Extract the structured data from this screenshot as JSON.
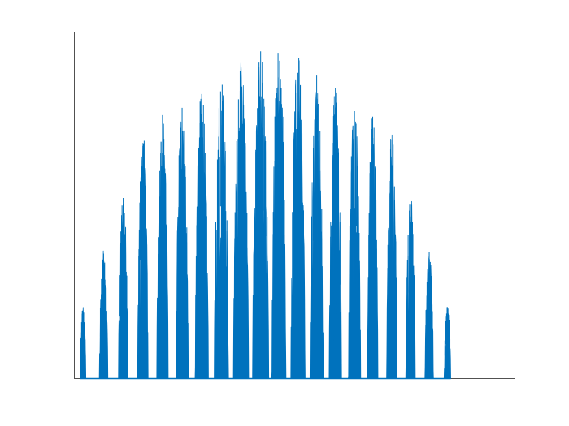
{
  "chart_data": {
    "type": "area",
    "title": "",
    "xlabel": "",
    "ylabel": "",
    "xlim": [
      0,
      23
    ],
    "ylim": [
      0,
      1
    ],
    "grid": false,
    "legend": "none",
    "color": "#0072BD",
    "series": [
      {
        "lobes": [
          {
            "start": 0.3,
            "end": 0.6,
            "peak": 0.21
          },
          {
            "start": 1.3,
            "end": 1.75,
            "peak": 0.37
          },
          {
            "start": 2.3,
            "end": 2.8,
            "peak": 0.54
          },
          {
            "start": 3.3,
            "end": 3.85,
            "peak": 0.72
          },
          {
            "start": 4.3,
            "end": 4.9,
            "peak": 0.77
          },
          {
            "start": 5.3,
            "end": 5.95,
            "peak": 0.8
          },
          {
            "start": 6.3,
            "end": 7.0,
            "peak": 0.84
          },
          {
            "start": 7.3,
            "end": 8.05,
            "peak": 0.88
          },
          {
            "start": 8.3,
            "end": 9.1,
            "peak": 0.92
          },
          {
            "start": 9.3,
            "end": 10.15,
            "peak": 0.95
          },
          {
            "start": 10.3,
            "end": 11.05,
            "peak": 0.99
          },
          {
            "start": 11.3,
            "end": 12.05,
            "peak": 0.94
          },
          {
            "start": 12.3,
            "end": 13.0,
            "peak": 0.88
          },
          {
            "start": 13.3,
            "end": 13.95,
            "peak": 0.84
          },
          {
            "start": 14.3,
            "end": 14.95,
            "peak": 0.8
          },
          {
            "start": 15.3,
            "end": 15.85,
            "peak": 0.77
          },
          {
            "start": 16.3,
            "end": 16.85,
            "peak": 0.72
          },
          {
            "start": 17.3,
            "end": 17.8,
            "peak": 0.54
          },
          {
            "start": 18.3,
            "end": 18.75,
            "peak": 0.37
          },
          {
            "start": 19.3,
            "end": 19.65,
            "peak": 0.21
          }
        ]
      }
    ]
  }
}
